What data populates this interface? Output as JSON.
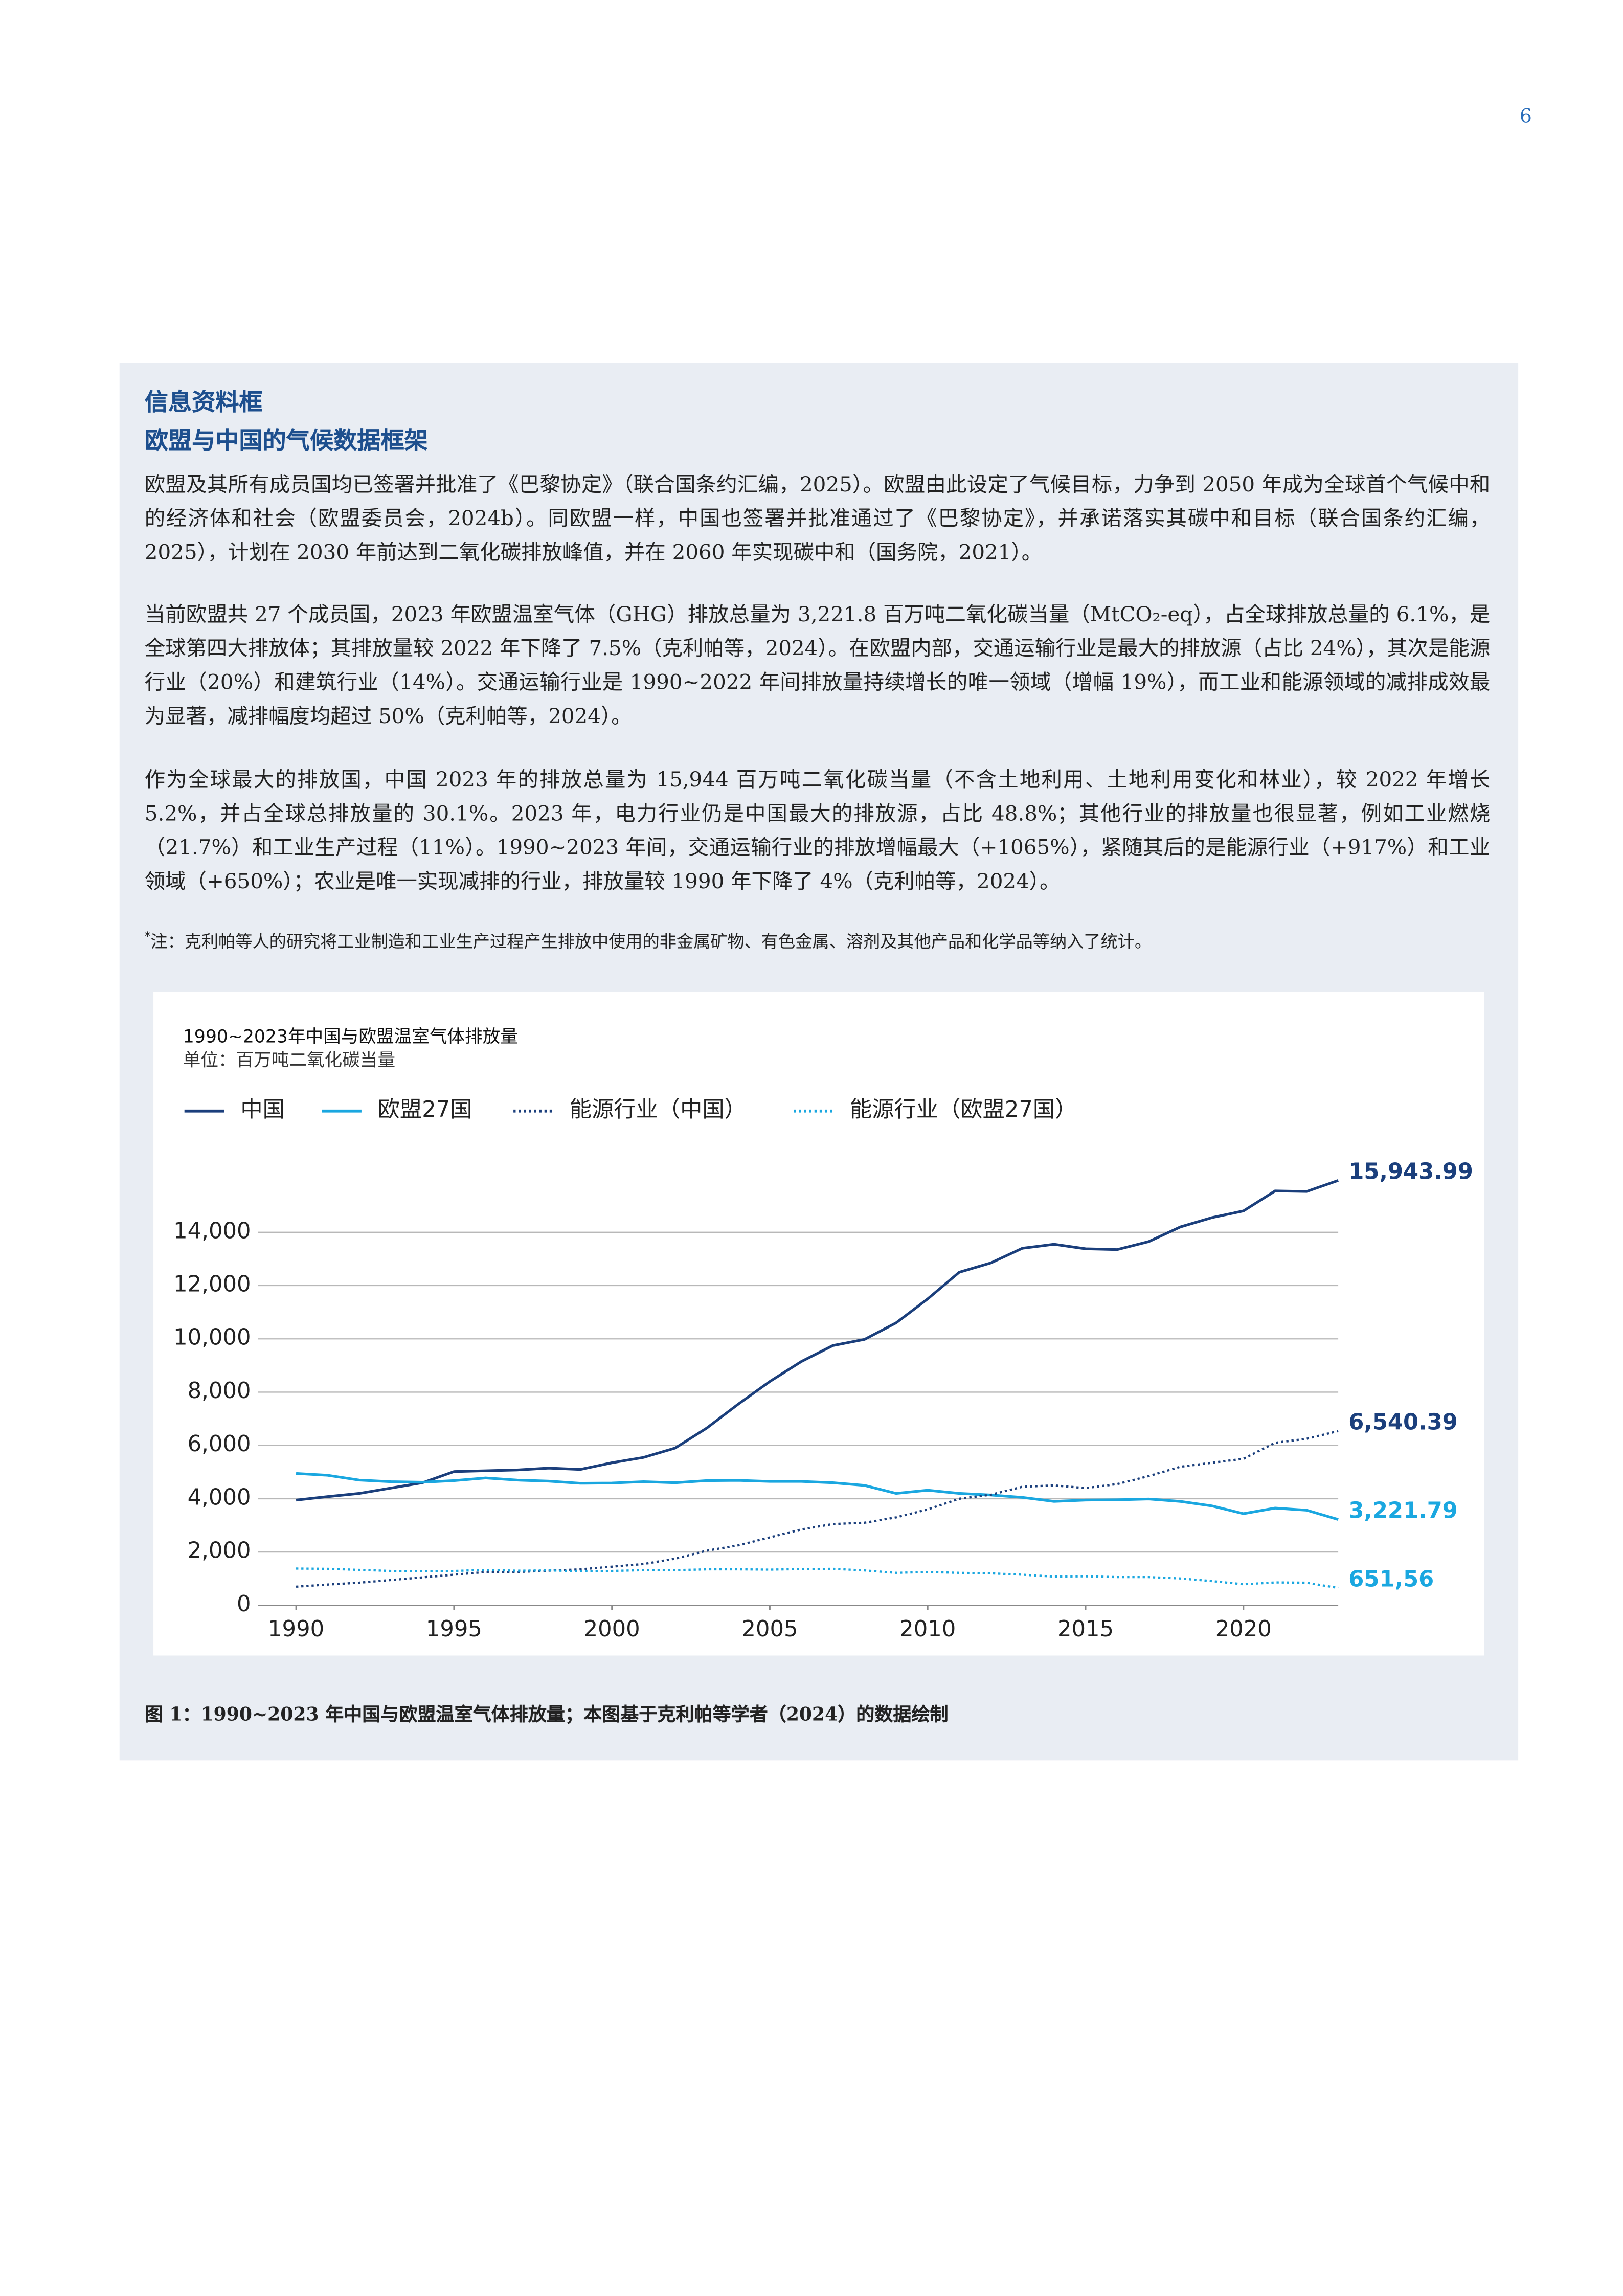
{
  "page_number": "6",
  "box": {
    "title_lines": [
      "信息资料框",
      "欧盟与中国的气候数据框架"
    ],
    "paragraphs": [
      "欧盟及其所有成员国均已签署并批准了《巴黎协定》（联合国条约汇编，2025）。欧盟由此设定了气候目标，力争到 2050 年成为全球首个气候中和的经济体和社会（欧盟委员会，2024b）。同欧盟一样，中国也签署并批准通过了《巴黎协定》，并承诺落实其碳中和目标（联合国条约汇编，2025），计划在 2030 年前达到二氧化碳排放峰值，并在 2060 年实现碳中和（国务院，2021）。",
      "当前欧盟共 27 个成员国，2023 年欧盟温室气体（GHG）排放总量为 3,221.8 百万吨二氧化碳当量（MtCO₂-eq），占全球排放总量的 6.1%，是全球第四大排放体；其排放量较 2022 年下降了 7.5%（克利帕等，2024）。在欧盟内部，交通运输行业是最大的排放源（占比 24%），其次是能源行业（20%）和建筑行业（14%）。交通运输行业是 1990~2022 年间排放量持续增长的唯一领域（增幅 19%），而工业和能源领域的减排成效最为显著，减排幅度均超过 50%（克利帕等，2024）。",
      "作为全球最大的排放国，中国 2023 年的排放总量为 15,944 百万吨二氧化碳当量（不含土地利用、土地利用变化和林业），较 2022 年增长 5.2%，并占全球总排放量的 30.1%。2023 年，电力行业仍是中国最大的排放源，占比 48.8%；其他行业的排放量也很显著，例如工业燃烧（21.7%）和工业生产过程（11%）。1990~2023 年间，交通运输行业的排放增幅最大（+1065%），紧随其后的是能源行业（+917%）和工业领域（+650%）；农业是唯一实现减排的行业，排放量较 1990 年下降了 4%（克利帕等，2024）。"
    ],
    "note_marker": "*",
    "note": "注：克利帕等人的研究将工业制造和工业生产过程产生排放中使用的非金属矿物、有色金属、溶剂及其他产品和化学品等纳入了统计。",
    "caption": "图 1：1990~2023 年中国与欧盟温室气体排放量；本图基于克利帕等学者（2024）的数据绘制"
  },
  "chart_data": {
    "type": "line",
    "title": "1990~2023年中国与欧盟温室气体排放量",
    "subtitle": "单位：百万吨二氧化碳当量",
    "x": [
      1990,
      1991,
      1992,
      1993,
      1994,
      1995,
      1996,
      1997,
      1998,
      1999,
      2000,
      2001,
      2002,
      2003,
      2004,
      2005,
      2006,
      2007,
      2008,
      2009,
      2010,
      2011,
      2012,
      2013,
      2014,
      2015,
      2016,
      2017,
      2018,
      2019,
      2020,
      2021,
      2022,
      2023
    ],
    "xlim": [
      1988.8,
      2023
    ],
    "xticks": [
      1990,
      1995,
      2000,
      2005,
      2010,
      2015,
      2020
    ],
    "ylim": [
      0,
      16500
    ],
    "yticks": [
      0,
      {
        "value": 2000,
        "label": "2,000"
      },
      {
        "value": 4000,
        "label": "4,000"
      },
      {
        "value": 6000,
        "label": "6,000"
      },
      {
        "value": 8000,
        "label": "8,000"
      },
      {
        "value": 10000,
        "label": "10,000"
      },
      {
        "value": 12000,
        "label": "12,000"
      },
      {
        "value": 14000,
        "label": "14,000"
      }
    ],
    "grid": true,
    "series": [
      {
        "name": "中国",
        "color": "#1b3f7c",
        "style": "solid",
        "values": [
          3950,
          4080,
          4200,
          4400,
          4600,
          5020,
          5050,
          5080,
          5150,
          5100,
          5350,
          5550,
          5900,
          6650,
          7550,
          8400,
          9150,
          9750,
          9980,
          10600,
          11500,
          12500,
          12850,
          13400,
          13550,
          13380,
          13350,
          13650,
          14200,
          14550,
          14800,
          15550,
          15530,
          15943.99
        ],
        "value_labels": [
          null,
          null,
          null,
          null,
          null,
          null,
          null,
          null,
          null,
          null,
          null,
          null,
          null,
          null,
          null,
          null,
          null,
          null,
          null,
          null,
          null,
          null,
          null,
          null,
          null,
          null,
          null,
          null,
          null,
          null,
          null,
          null,
          null,
          "15,943.99"
        ]
      },
      {
        "name": "欧盟27国",
        "color": "#1aa7e0",
        "style": "solid",
        "values": [
          4950,
          4880,
          4700,
          4640,
          4620,
          4680,
          4780,
          4700,
          4660,
          4580,
          4590,
          4640,
          4600,
          4680,
          4690,
          4650,
          4650,
          4600,
          4500,
          4200,
          4320,
          4200,
          4140,
          4050,
          3900,
          3950,
          3960,
          3990,
          3900,
          3730,
          3440,
          3650,
          3570,
          3221.79
        ],
        "value_labels": [
          null,
          null,
          null,
          null,
          null,
          null,
          null,
          null,
          null,
          null,
          null,
          null,
          null,
          null,
          null,
          null,
          null,
          null,
          null,
          null,
          null,
          null,
          null,
          null,
          null,
          null,
          null,
          null,
          null,
          null,
          null,
          null,
          null,
          "3,221.79"
        ]
      },
      {
        "name": "能源行业（中国）",
        "color": "#1b3f7c",
        "style": "dotted",
        "values": [
          700,
          780,
          850,
          950,
          1050,
          1150,
          1250,
          1250,
          1300,
          1350,
          1450,
          1550,
          1750,
          2050,
          2250,
          2550,
          2850,
          3050,
          3100,
          3300,
          3600,
          4000,
          4150,
          4450,
          4500,
          4400,
          4550,
          4850,
          5200,
          5350,
          5500,
          6100,
          6250,
          6540.39
        ],
        "value_labels": [
          null,
          null,
          null,
          null,
          null,
          null,
          null,
          null,
          null,
          null,
          null,
          null,
          null,
          null,
          null,
          null,
          null,
          null,
          null,
          null,
          null,
          null,
          null,
          null,
          null,
          null,
          null,
          null,
          null,
          null,
          null,
          null,
          null,
          "6,540.39"
        ]
      },
      {
        "name": "能源行业（欧盟27国）",
        "color": "#1aa7e0",
        "style": "dotted",
        "values": [
          1380,
          1370,
          1330,
          1290,
          1280,
          1290,
          1330,
          1300,
          1310,
          1280,
          1290,
          1320,
          1320,
          1350,
          1350,
          1340,
          1360,
          1370,
          1310,
          1220,
          1250,
          1220,
          1200,
          1150,
          1080,
          1090,
          1060,
          1060,
          1010,
          910,
          790,
          860,
          850,
          651.56
        ],
        "value_labels": [
          null,
          null,
          null,
          null,
          null,
          null,
          null,
          null,
          null,
          null,
          null,
          null,
          null,
          null,
          null,
          null,
          null,
          null,
          null,
          null,
          null,
          null,
          null,
          null,
          null,
          null,
          null,
          null,
          null,
          null,
          null,
          null,
          null,
          "651,56"
        ]
      }
    ]
  }
}
